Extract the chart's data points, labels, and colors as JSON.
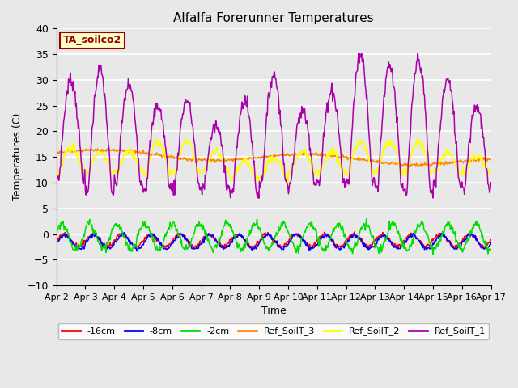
{
  "title": "Alfalfa Forerunner Temperatures",
  "xlabel": "Time",
  "ylabel": "Temperatures (C)",
  "ylim": [
    -10,
    40
  ],
  "yticks": [
    -10,
    -5,
    0,
    5,
    10,
    15,
    20,
    25,
    30,
    35,
    40
  ],
  "annotation_text": "TA_soilco2",
  "annotation_bg": "#ffffcc",
  "annotation_border": "#990000",
  "plot_bg": "#e8e8e8",
  "grid_color": "#ffffff",
  "series_colors": {
    "neg16cm": "#ff0000",
    "neg8cm": "#0000ff",
    "neg2cm": "#00dd00",
    "ref3": "#ff8800",
    "ref2": "#ffff00",
    "ref1": "#aa00aa"
  },
  "legend": [
    {
      "label": "-16cm",
      "color": "#ff0000"
    },
    {
      "label": "-8cm",
      "color": "#0000ff"
    },
    {
      "label": "-2cm",
      "color": "#00dd00"
    },
    {
      "label": "Ref_SoilT_3",
      "color": "#ff8800"
    },
    {
      "label": "Ref_SoilT_2",
      "color": "#ffff00"
    },
    {
      "label": "Ref_SoilT_1",
      "color": "#aa00aa"
    }
  ],
  "xtick_labels": [
    "Apr 2",
    "Apr 3",
    "Apr 4",
    "Apr 5",
    "Apr 6",
    "Apr 7",
    "Apr 8",
    "Apr 9",
    "Apr 10",
    "Apr 11",
    "Apr 12",
    "Apr 13",
    "Apr 14",
    "Apr 15",
    "Apr 16",
    "Apr 17"
  ],
  "n_points": 720,
  "days": 15
}
